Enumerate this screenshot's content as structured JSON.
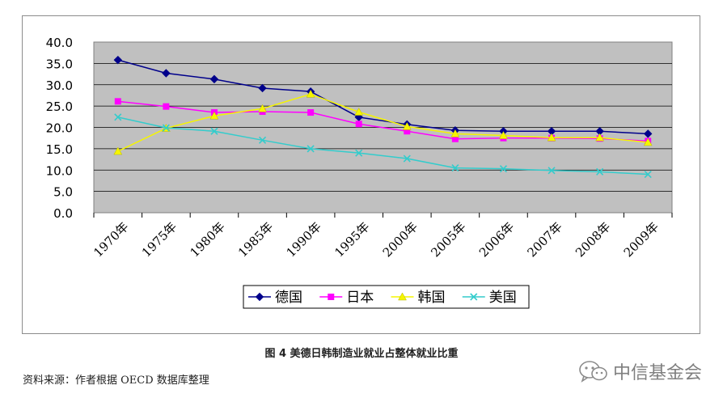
{
  "chart_data": {
    "type": "line",
    "categories": [
      "1970年",
      "1975年",
      "1980年",
      "1985年",
      "1990年",
      "1995年",
      "2000年",
      "2005年",
      "2006年",
      "2007年",
      "2008年",
      "2009年"
    ],
    "yticks": [
      "0.0",
      "5.0",
      "10.0",
      "15.0",
      "20.0",
      "25.0",
      "30.0",
      "35.0",
      "40.0"
    ],
    "ylim": [
      0,
      40
    ],
    "grid": true,
    "legend_position": "bottom",
    "series": [
      {
        "name": "德国",
        "color": "#00008B",
        "marker": "diamond",
        "values": [
          35.8,
          32.7,
          31.3,
          29.2,
          28.4,
          22.4,
          20.7,
          19.3,
          19.1,
          19.1,
          19.1,
          18.5
        ]
      },
      {
        "name": "日本",
        "color": "#FF00FF",
        "marker": "square",
        "values": [
          26.1,
          24.9,
          23.5,
          23.7,
          23.5,
          20.8,
          19.1,
          17.3,
          17.5,
          17.5,
          17.4,
          16.8
        ]
      },
      {
        "name": "韩国",
        "color": "#F5F500",
        "marker": "triangle",
        "values": [
          14.4,
          19.8,
          22.7,
          24.4,
          27.8,
          23.6,
          20.2,
          18.5,
          18.1,
          17.6,
          17.6,
          16.5
        ]
      },
      {
        "name": "美国",
        "color": "#33CCCC",
        "marker": "x",
        "values": [
          22.4,
          19.9,
          19.1,
          17.0,
          15.0,
          14.0,
          12.7,
          10.5,
          10.3,
          9.9,
          9.6,
          9.0
        ]
      }
    ]
  },
  "caption": "图 4  美德日韩制造业就业占整体就业比重",
  "source": "资料来源：作者根据 OECD 数据库整理",
  "watermark": {
    "text": "中信基金会",
    "icon": "wechat-icon"
  }
}
